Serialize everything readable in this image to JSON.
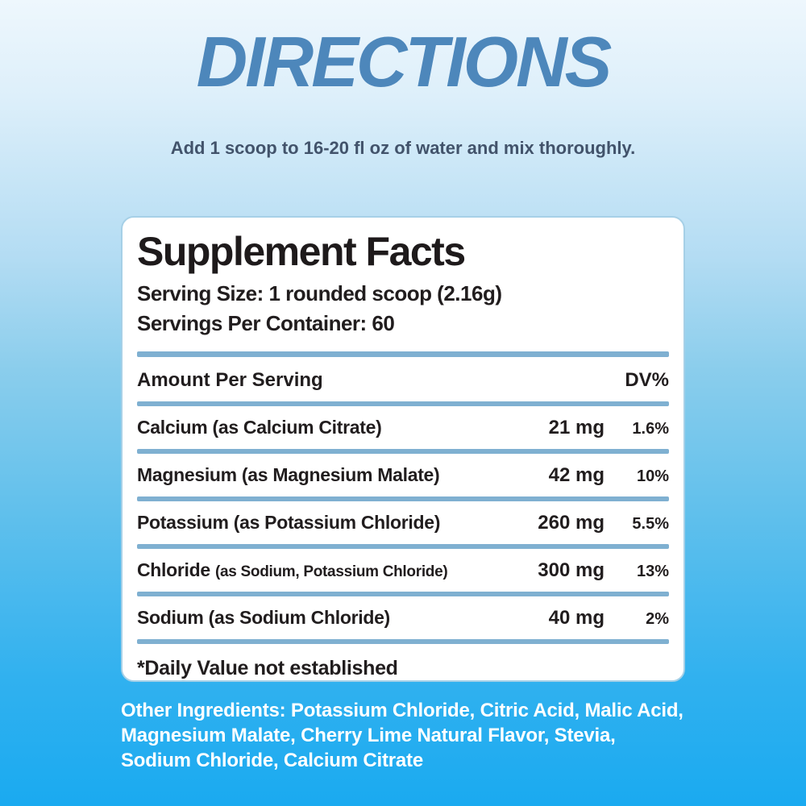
{
  "page": {
    "title": "DIRECTIONS",
    "subtitle": "Add 1 scoop to 16-20 fl oz of water and mix thoroughly."
  },
  "panel": {
    "title": "Supplement Facts",
    "serving_size_line": "Serving Size: 1 rounded scoop (2.16g)",
    "servings_per_container_line": "Servings Per Container: 60",
    "table": {
      "header": {
        "amount_label": "Amount Per Serving",
        "dv_label": "DV%"
      },
      "rows": [
        {
          "name": "Calcium",
          "source": "(as Calcium Citrate)",
          "amount": "21 mg",
          "dv": "1.6%"
        },
        {
          "name": "Magnesium",
          "source": "(as Magnesium Malate)",
          "amount": "42 mg",
          "dv": "10%"
        },
        {
          "name": "Potassium",
          "source": "(as Potassium Chloride)",
          "amount": "260 mg",
          "dv": "5.5%"
        },
        {
          "name": "Chloride",
          "source": "(as Sodium, Potassium Chloride)",
          "amount": "300 mg",
          "dv": "13%"
        },
        {
          "name": "Sodium",
          "source": "(as Sodium Chloride)",
          "amount": "40 mg",
          "dv": "2%"
        }
      ]
    },
    "footnote": "*Daily Value not established"
  },
  "other_ingredients": {
    "lines": [
      "Other Ingredients: Potassium Chloride, Citric Acid, Malic Acid,",
      "Magnesium Malate, Cherry Lime Natural Flavor, Stevia,",
      "Sodium Chloride, Calcium Citrate"
    ]
  },
  "colors": {
    "title_blue": "#4d87bb",
    "subtitle_slate": "#42536b",
    "divider_blue": "#7fb0d1",
    "card_border": "#a6d0e7",
    "ink": "#211d1e",
    "background_top": "#eef7fd",
    "background_bottom": "#1aaaf0",
    "other_ingredients_text": "#ffffff"
  }
}
